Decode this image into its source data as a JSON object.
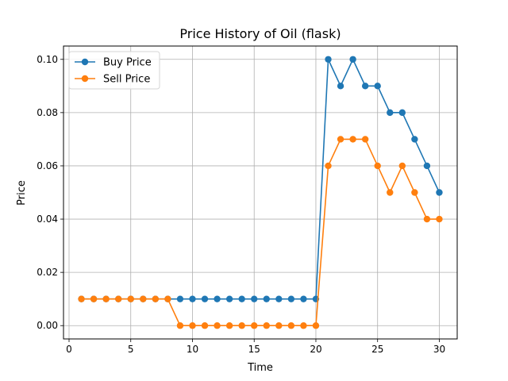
{
  "chart_data": {
    "type": "line",
    "title": "Price History of Oil (flask)",
    "xlabel": "Time",
    "ylabel": "Price",
    "xlim": [
      -0.45,
      31.45
    ],
    "ylim": [
      -0.005,
      0.105
    ],
    "xticks": [
      0,
      5,
      10,
      15,
      20,
      25,
      30
    ],
    "yticks": [
      0.0,
      0.02,
      0.04,
      0.06,
      0.08,
      0.1
    ],
    "ytick_labels": [
      "0.00",
      "0.02",
      "0.04",
      "0.06",
      "0.08",
      "0.10"
    ],
    "grid": true,
    "legend_position": "upper-left",
    "x": [
      1,
      2,
      3,
      4,
      5,
      6,
      7,
      8,
      9,
      10,
      11,
      12,
      13,
      14,
      15,
      16,
      17,
      18,
      19,
      20,
      21,
      22,
      23,
      24,
      25,
      26,
      27,
      28,
      29,
      30
    ],
    "series": [
      {
        "name": "Buy Price",
        "color": "#1f77b4",
        "values": [
          0.01,
          0.01,
          0.01,
          0.01,
          0.01,
          0.01,
          0.01,
          0.01,
          0.01,
          0.01,
          0.01,
          0.01,
          0.01,
          0.01,
          0.01,
          0.01,
          0.01,
          0.01,
          0.01,
          0.01,
          0.1,
          0.09,
          0.1,
          0.09,
          0.09,
          0.08,
          0.08,
          0.07,
          0.06,
          0.05
        ]
      },
      {
        "name": "Sell Price",
        "color": "#ff7f0e",
        "values": [
          0.01,
          0.01,
          0.01,
          0.01,
          0.01,
          0.01,
          0.01,
          0.01,
          0.0,
          0.0,
          0.0,
          0.0,
          0.0,
          0.0,
          0.0,
          0.0,
          0.0,
          0.0,
          0.0,
          0.0,
          0.06,
          0.07,
          0.07,
          0.07,
          0.06,
          0.05,
          0.06,
          0.05,
          0.04,
          0.04
        ]
      }
    ]
  }
}
